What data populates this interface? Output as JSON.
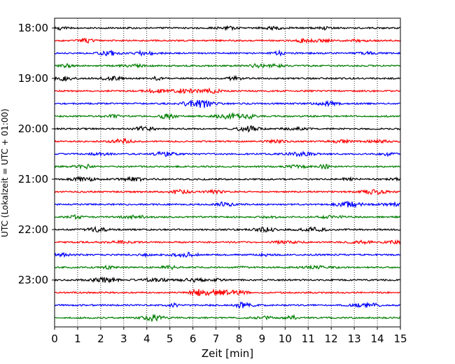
{
  "chart_data": {
    "type": "line",
    "title": "",
    "xlabel": "Zeit  [min]",
    "ylabel": "UTC (Lokalzeit = UTC + 01:00)",
    "xlim": [
      0,
      15
    ],
    "x_ticks": [
      0,
      1,
      2,
      3,
      4,
      5,
      6,
      7,
      8,
      9,
      10,
      11,
      12,
      13,
      14,
      15
    ],
    "y_tick_labels": [
      "18:00",
      "19:00",
      "20:00",
      "21:00",
      "22:00",
      "23:00"
    ],
    "grid": "vertical dotted",
    "trace_interval_min": 15,
    "start_time": "18:00",
    "end_time": "23:45",
    "trace_colors": [
      "#000000",
      "#ff0000",
      "#0000ff",
      "#007f00"
    ],
    "traces": [
      {
        "time": "18:00",
        "color": "#000000"
      },
      {
        "time": "18:15",
        "color": "#ff0000"
      },
      {
        "time": "18:30",
        "color": "#0000ff"
      },
      {
        "time": "18:45",
        "color": "#007f00"
      },
      {
        "time": "19:00",
        "color": "#000000"
      },
      {
        "time": "19:15",
        "color": "#ff0000"
      },
      {
        "time": "19:30",
        "color": "#0000ff"
      },
      {
        "time": "19:45",
        "color": "#007f00"
      },
      {
        "time": "20:00",
        "color": "#000000"
      },
      {
        "time": "20:15",
        "color": "#ff0000"
      },
      {
        "time": "20:30",
        "color": "#0000ff"
      },
      {
        "time": "20:45",
        "color": "#007f00"
      },
      {
        "time": "21:00",
        "color": "#000000"
      },
      {
        "time": "21:15",
        "color": "#ff0000"
      },
      {
        "time": "21:30",
        "color": "#0000ff"
      },
      {
        "time": "21:45",
        "color": "#007f00"
      },
      {
        "time": "22:00",
        "color": "#000000"
      },
      {
        "time": "22:15",
        "color": "#ff0000"
      },
      {
        "time": "22:30",
        "color": "#0000ff"
      },
      {
        "time": "22:45",
        "color": "#007f00"
      },
      {
        "time": "23:00",
        "color": "#000000"
      },
      {
        "time": "23:15",
        "color": "#ff0000"
      },
      {
        "time": "23:30",
        "color": "#0000ff"
      },
      {
        "time": "23:45",
        "color": "#007f00"
      }
    ]
  }
}
